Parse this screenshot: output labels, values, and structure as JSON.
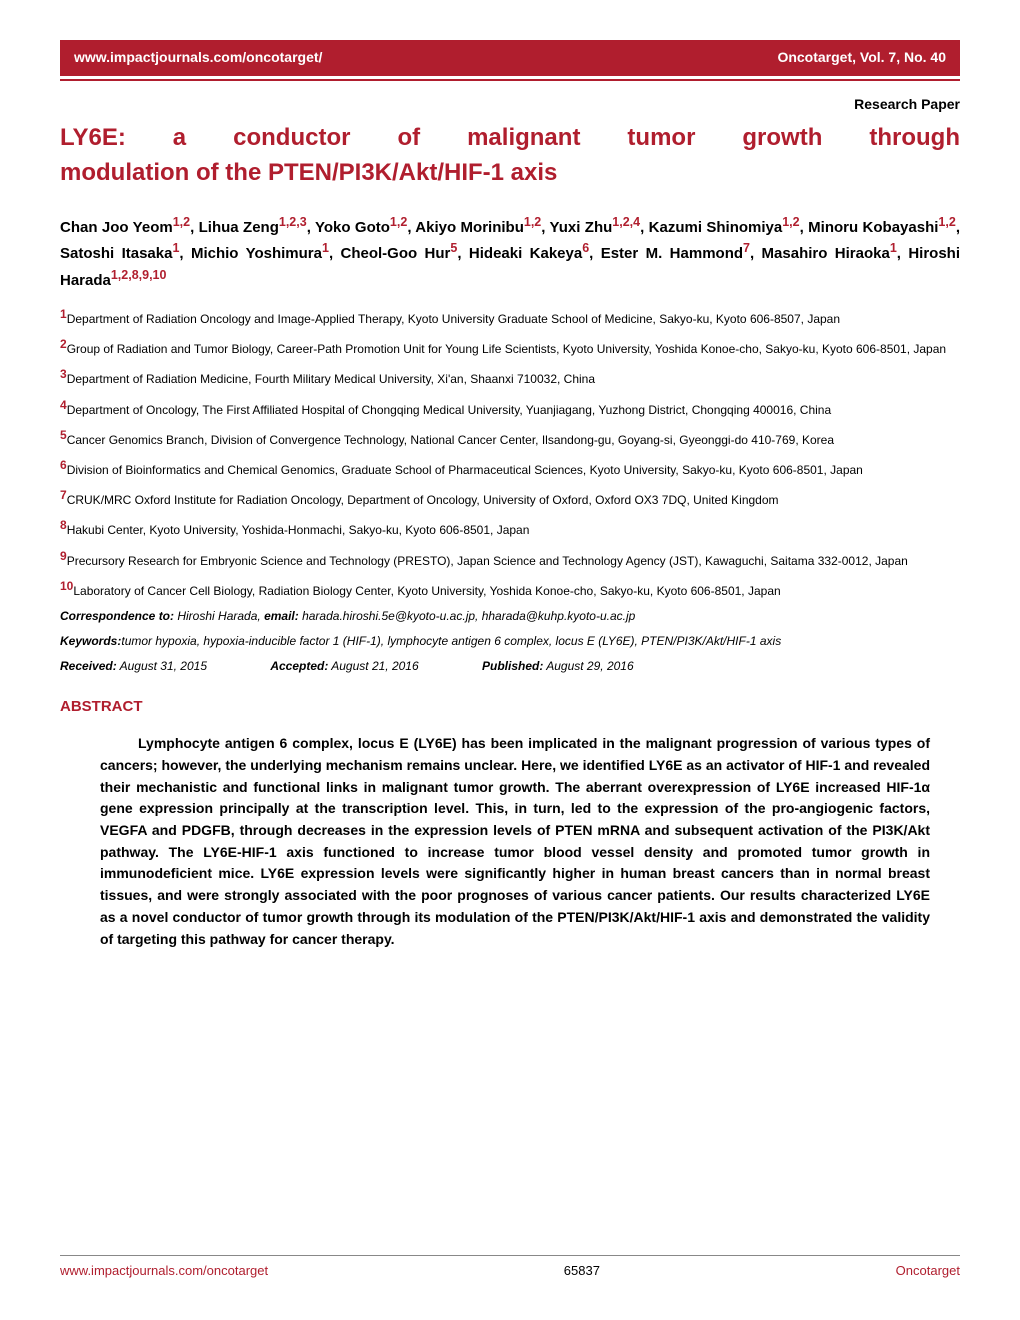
{
  "header": {
    "url": "www.impactjournals.com/oncotarget/",
    "journal": "Oncotarget, Vol. 7, No. 40"
  },
  "paper_type": "Research Paper",
  "title_line1": "LY6E: a conductor of malignant tumor growth through",
  "title_line2": "modulation of the PTEN/PI3K/Akt/HIF-1 axis",
  "affiliations": {
    "1": "Department of Radiation Oncology and Image-Applied Therapy, Kyoto University Graduate School of Medicine, Sakyo-ku, Kyoto 606-8507, Japan",
    "2": "Group of Radiation and Tumor Biology, Career-Path Promotion Unit for Young Life Scientists, Kyoto University, Yoshida Konoe-cho, Sakyo-ku, Kyoto 606-8501, Japan",
    "3": "Department of Radiation Medicine, Fourth Military Medical University, Xi'an, Shaanxi 710032, China",
    "4": "Department of Oncology, The First Affiliated Hospital of Chongqing Medical University, Yuanjiagang, Yuzhong District, Chongqing 400016, China",
    "5": "Cancer Genomics Branch, Division of Convergence Technology, National Cancer Center, Ilsandong-gu, Goyang-si, Gyeonggi-do 410-769, Korea",
    "6": "Division of Bioinformatics and Chemical Genomics, Graduate School of Pharmaceutical Sciences, Kyoto University, Sakyo-ku, Kyoto 606-8501, Japan",
    "7": "CRUK/MRC Oxford Institute for Radiation Oncology, Department of Oncology, University of Oxford, Oxford OX3 7DQ, United Kingdom",
    "8": "Hakubi Center, Kyoto University, Yoshida-Honmachi, Sakyo-ku, Kyoto 606-8501, Japan",
    "9": "Precursory Research for Embryonic Science and Technology (PRESTO), Japan Science and Technology Agency (JST), Kawaguchi, Saitama 332-0012, Japan",
    "10": "Laboratory of Cancer Cell Biology, Radiation Biology Center, Kyoto University, Yoshida Konoe-cho, Sakyo-ku, Kyoto 606-8501, Japan"
  },
  "correspondence": {
    "label": "Correspondence to:",
    "text": " Hiroshi Harada, ",
    "email_label": "email:",
    "emails": " harada.hiroshi.5e@kyoto-u.ac.jp, hharada@kuhp.kyoto-u.ac.jp"
  },
  "keywords": {
    "label": "Keywords:",
    "text": " tumor hypoxia, hypoxia-inducible factor 1 (HIF-1), lymphocyte antigen 6 complex, locus E (LY6E), PTEN/PI3K/Akt/HIF-1 axis"
  },
  "dates": {
    "received_label": "Received:",
    "received": " August 31, 2015",
    "accepted_label": "Accepted:",
    "accepted": " August 21, 2016",
    "published_label": "Published:",
    "published": " August 29, 2016"
  },
  "abstract": {
    "heading": "ABSTRACT",
    "text": "Lymphocyte antigen 6 complex, locus E (LY6E) has been implicated in the malignant progression of various types of cancers; however, the underlying mechanism remains unclear. Here, we identified LY6E as an activator of HIF-1 and revealed their mechanistic and functional links in malignant tumor growth. The aberrant overexpression of LY6E increased HIF-1α gene expression principally at the transcription level. This, in turn, led to the expression of the pro-angiogenic factors, VEGFA and PDGFB, through decreases in the expression levels of PTEN mRNA and subsequent activation of the PI3K/Akt pathway. The LY6E-HIF-1 axis functioned to increase tumor blood vessel density and promoted tumor growth in immunodeficient mice. LY6E expression levels were significantly higher in human breast cancers than in normal breast tissues, and were strongly associated with the poor prognoses of various cancer patients. Our results characterized LY6E as a novel conductor of tumor growth through its modulation of the PTEN/PI3K/Akt/HIF-1 axis and demonstrated the validity of targeting this pathway for cancer therapy."
  },
  "footer": {
    "url": "www.impactjournals.com/oncotarget",
    "page": "65837",
    "journal": "Oncotarget"
  }
}
